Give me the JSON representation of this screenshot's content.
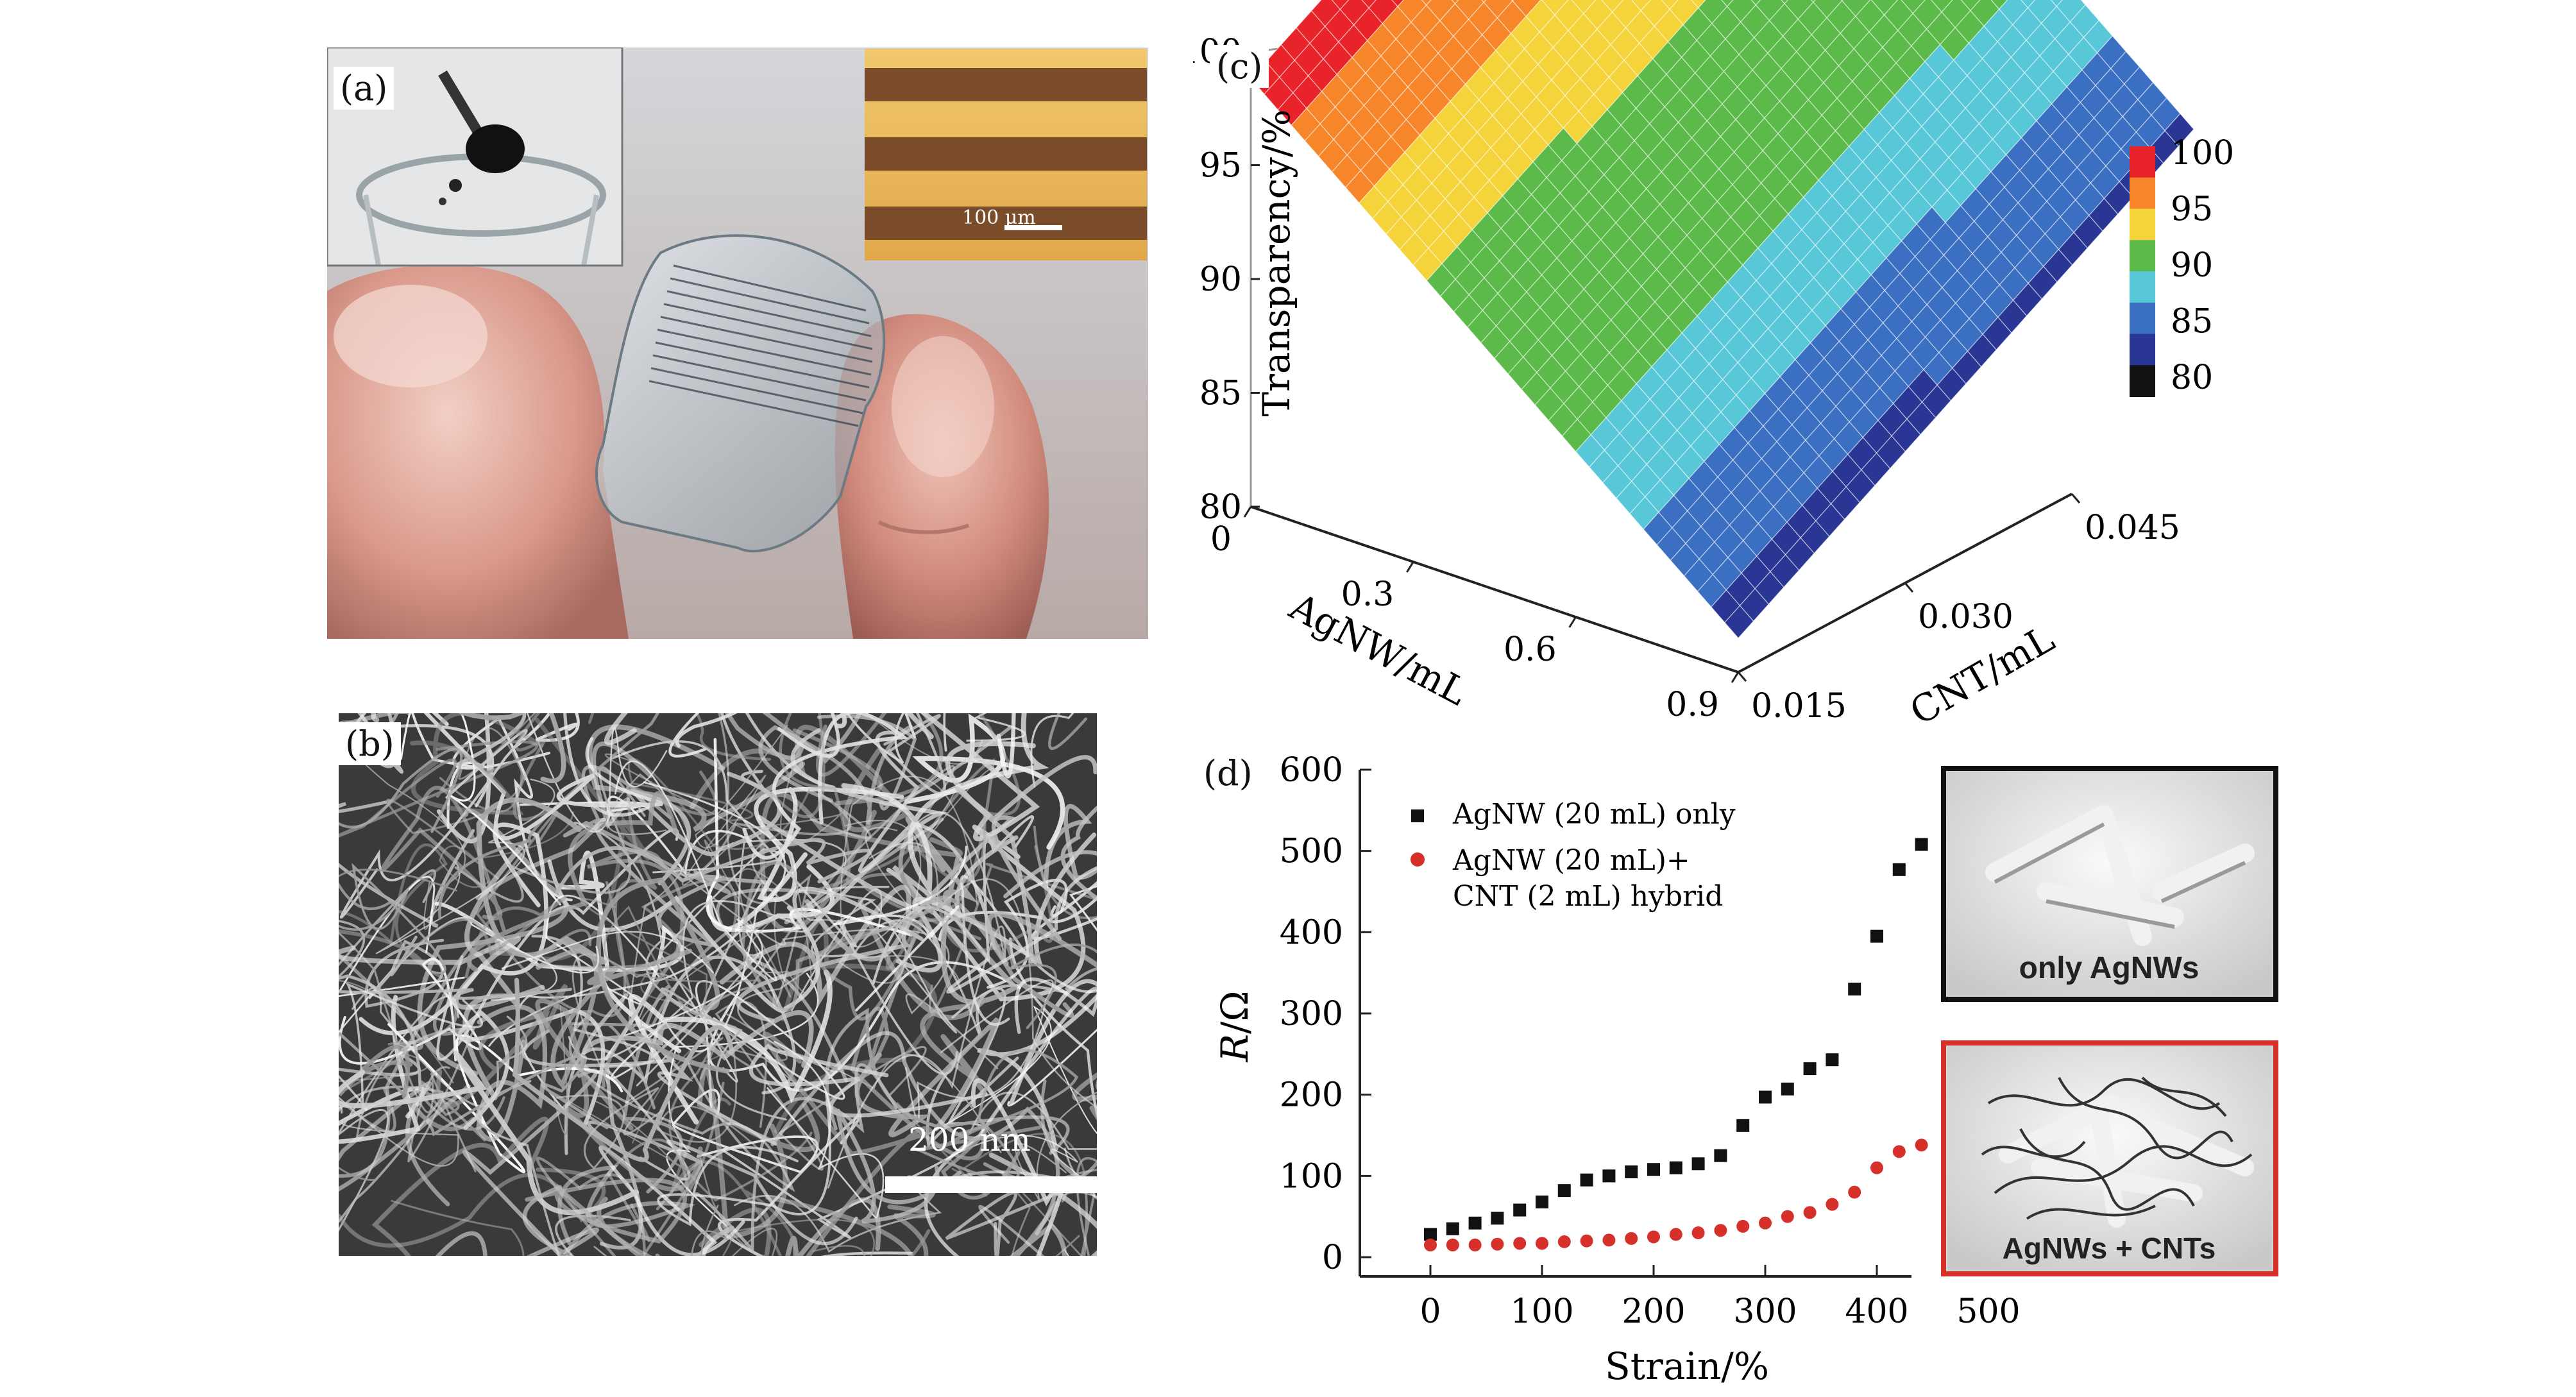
{
  "figure": {
    "panel_a": {
      "label": "(a)",
      "scale_bar_text": "100 μm"
    },
    "panel_b": {
      "label": "(b)",
      "scale_bar_text": "200 nm"
    },
    "panel_c": {
      "label": "(c)"
    },
    "panel_d": {
      "label": "(d)",
      "inset_top_text": "only AgNWs",
      "inset_bottom_text": "AgNWs + CNTs"
    }
  },
  "chart_data": [
    {
      "type": "surface",
      "zlabel": "Transparency/%",
      "xlabel": "AgNW/mL",
      "ylabel": "CNT/mL",
      "z_ticks": [
        "80",
        "85",
        "90",
        "95",
        "100"
      ],
      "x_ticks": [
        "0",
        "0.3",
        "0.6",
        "0.9"
      ],
      "y_ticks": [
        "0.015",
        "0.030",
        "0.045"
      ],
      "zlim": [
        80,
        100
      ],
      "xlim": [
        0,
        0.9
      ],
      "ylim": [
        0.015,
        0.045
      ],
      "colorbar": {
        "ticks": [
          "100",
          "95",
          "90",
          "85",
          "80"
        ],
        "colors": [
          "#e8232a",
          "#f7862a",
          "#f4d43a",
          "#5cba4a",
          "#58c7d8",
          "#3a6fc2",
          "#2a3694",
          "#111111"
        ]
      },
      "surface": {
        "x": [
          0,
          0.9
        ],
        "z_at_x": [
          98.8,
          81.5
        ],
        "note": ""
      }
    },
    {
      "type": "scatter",
      "xlabel": "Strain/%",
      "ylabel_italic": "R",
      "ylabel_unit": "/Ω",
      "xlim": [
        0,
        500
      ],
      "ylim": [
        0,
        600
      ],
      "x_ticks": [
        "0",
        "100",
        "200",
        "300",
        "400",
        "500"
      ],
      "y_ticks": [
        "0",
        "100",
        "200",
        "300",
        "400",
        "500",
        "600"
      ],
      "legend_placement": "top-left",
      "series": [
        {
          "name": "AgNW (20 mL) only",
          "color": "#111111",
          "marker": "square",
          "x": [
            0,
            20,
            40,
            60,
            80,
            100,
            120,
            140,
            160,
            180,
            200,
            220,
            240,
            260,
            280,
            300,
            320,
            340,
            360,
            380,
            400,
            420,
            440
          ],
          "y": [
            28,
            35,
            42,
            48,
            58,
            68,
            82,
            95,
            100,
            105,
            108,
            110,
            115,
            125,
            162,
            197,
            207,
            232,
            243,
            330,
            395,
            477,
            508
          ]
        },
        {
          "name_line1": "AgNW (20 mL)+",
          "name_line2": "CNT (2 mL) hybrid",
          "color": "#d6302b",
          "marker": "circle",
          "x": [
            0,
            20,
            40,
            60,
            80,
            100,
            120,
            140,
            160,
            180,
            200,
            220,
            240,
            260,
            280,
            300,
            320,
            340,
            360,
            380,
            400,
            420,
            440
          ],
          "y": [
            15,
            15,
            15,
            16,
            17,
            17,
            19,
            20,
            21,
            23,
            25,
            28,
            30,
            33,
            38,
            42,
            50,
            55,
            65,
            80,
            110,
            130,
            138
          ]
        }
      ]
    }
  ]
}
